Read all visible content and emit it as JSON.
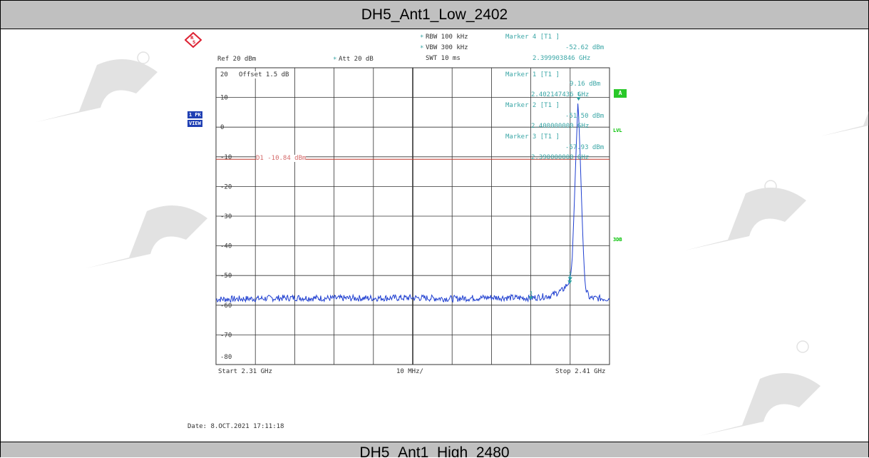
{
  "header": {
    "title": "DH5_Ant1_Low_2402"
  },
  "footer": {
    "title": "DH5_Ant1_High_2480"
  },
  "settings": {
    "rbw": "RBW 100 kHz",
    "vbw": "VBW 300 kHz",
    "swt": "SWT 10 ms",
    "ref": "Ref  20 dBm",
    "att": "Att  20 dB",
    "offset": "Offset  1.5 dB",
    "star": "*",
    "date": "Date: 8.OCT.2021  17:11:18"
  },
  "markers": [
    {
      "label": "Marker 4 [T1 ]",
      "level": "-52.62 dBm",
      "freq": "2.399903846 GHz"
    },
    {
      "label": "Marker 1 [T1 ]",
      "level": "9.16 dBm",
      "freq": "2.402147436 GHz"
    },
    {
      "label": "Marker 2 [T1 ]",
      "level": "-51.50 dBm",
      "freq": "2.400000000 GHz"
    },
    {
      "label": "Marker 3 [T1 ]",
      "level": "-57.93 dBm",
      "freq": "2.390000000 GHz"
    }
  ],
  "side": {
    "pk": "1 PK",
    "view": "VIEW",
    "a": "A",
    "lvl": "LVL",
    "db3": "3DB"
  },
  "display_line": {
    "label": "D1 -10.84 dBm"
  },
  "colors": {
    "trace": "#1f3fd0",
    "marker_text": "#3aa6a6",
    "display_line": "#c0392b",
    "badge_green": "#28c828",
    "badge_blue": "#1f3fb3"
  },
  "chart_data": {
    "type": "line",
    "title": "",
    "x_unit": "GHz",
    "xlim": [
      2.31,
      2.41
    ],
    "ylim": [
      -80,
      20
    ],
    "grid": true,
    "x_tick_labels": {
      "start": "Start  2.31 GHz",
      "div": "10 MHz/",
      "stop": "Stop  2.41 GHz"
    },
    "y_ticks": [
      20,
      10,
      0,
      -10,
      -20,
      -30,
      -40,
      -50,
      -60,
      -70,
      -80
    ],
    "display_line_dbm": -10.84,
    "markers": [
      {
        "id": "1",
        "x": 2.402147436,
        "y": 9.16
      },
      {
        "id": "2",
        "x": 2.4,
        "y": -51.5
      },
      {
        "id": "3",
        "x": 2.39,
        "y": -57.93
      },
      {
        "id": "4",
        "x": 2.399903846,
        "y": -52.62
      }
    ],
    "trace": {
      "noise_floor_dbm": -58.0,
      "x": [
        2.31,
        2.32,
        2.33,
        2.34,
        2.35,
        2.36,
        2.37,
        2.38,
        2.39,
        2.395,
        2.398,
        2.3995,
        2.4,
        2.4005,
        2.401,
        2.4015,
        2.402,
        2.4025,
        2.403,
        2.4035,
        2.404,
        2.405,
        2.41
      ],
      "y": [
        -58.0,
        -57.8,
        -57.5,
        -57.7,
        -57.6,
        -57.5,
        -57.8,
        -57.4,
        -57.6,
        -56.8,
        -55.0,
        -52.6,
        -51.5,
        -45.0,
        -28.0,
        -8.0,
        9.16,
        -8.0,
        -29.0,
        -46.0,
        -55.0,
        -57.6,
        -57.8
      ]
    }
  }
}
